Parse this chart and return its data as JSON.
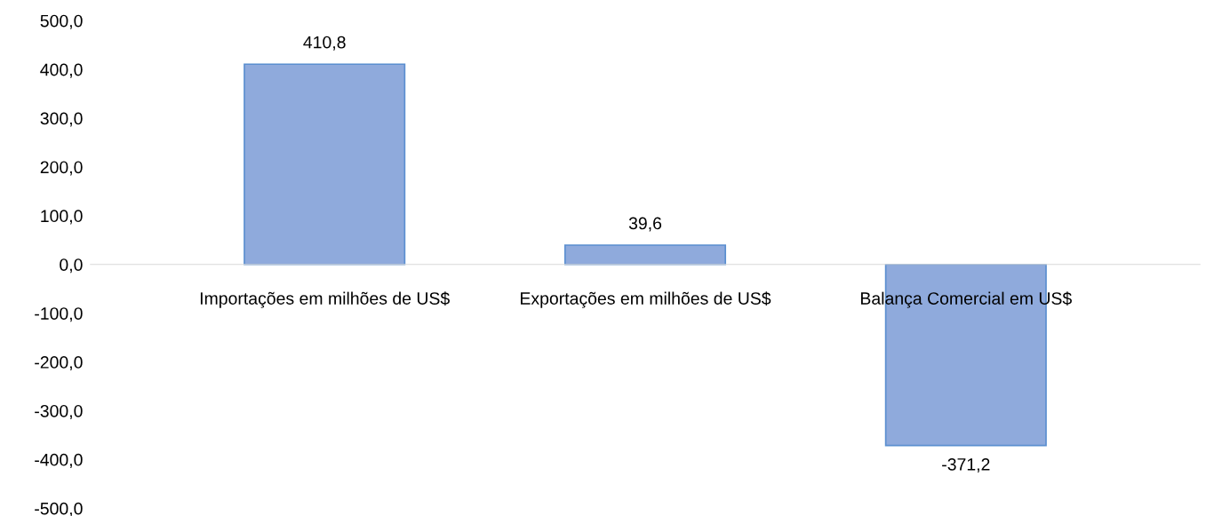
{
  "chart_data": {
    "type": "bar",
    "categories": [
      "Importações em milhões de US$",
      "Exportações em milhões de US$",
      "Balança Comercial em US$"
    ],
    "values": [
      410.8,
      39.6,
      -371.2
    ],
    "value_labels": [
      "410,8",
      "39,6",
      "-371,2"
    ],
    "color": "#8faadc",
    "ylim": [
      -500,
      500
    ],
    "yticks": [
      {
        "value": -500,
        "label": "-500,0"
      },
      {
        "value": -400,
        "label": "-400,0"
      },
      {
        "value": -300,
        "label": "-300,0"
      },
      {
        "value": -200,
        "label": "-200,0"
      },
      {
        "value": -100,
        "label": "-100,0"
      },
      {
        "value": 0,
        "label": "0,0"
      },
      {
        "value": 100,
        "label": "100,0"
      },
      {
        "value": 200,
        "label": "200,0"
      },
      {
        "value": 300,
        "label": "300,0"
      },
      {
        "value": 400,
        "label": "400,0"
      },
      {
        "value": 500,
        "label": "500,0"
      }
    ],
    "grid": false,
    "legend": false
  }
}
